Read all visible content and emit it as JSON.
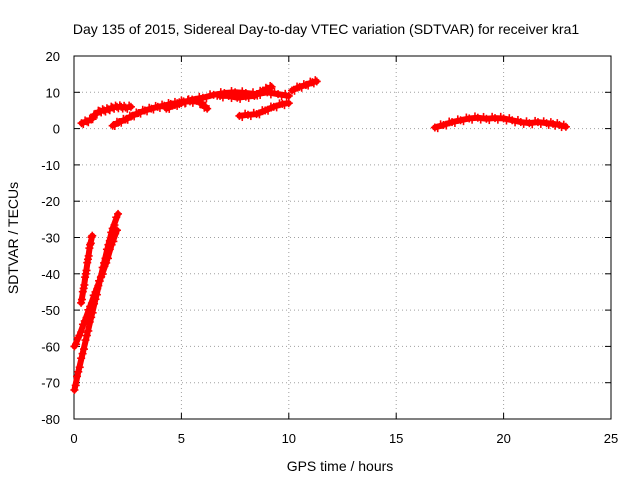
{
  "chart_data": {
    "type": "scatter",
    "title": "Day 135 of 2015, Sidereal Day-to-day VTEC variation (SDTVAR) for receiver kra1",
    "xlabel": "GPS time / hours",
    "ylabel": "SDTVAR / TECUs",
    "xlim": [
      0,
      25
    ],
    "ylim": [
      -80,
      20
    ],
    "xticks": [
      0,
      5,
      10,
      15,
      20,
      25
    ],
    "yticks": [
      -80,
      -70,
      -60,
      -50,
      -40,
      -30,
      -20,
      -10,
      0,
      10,
      20
    ],
    "grid": true,
    "marker": "plus",
    "series": [
      {
        "color": "#ff0000",
        "arcs": [
          [
            [
              0.33,
              -48
            ],
            [
              0.45,
              -44
            ],
            [
              0.55,
              -40
            ],
            [
              0.65,
              -36
            ],
            [
              0.75,
              -32
            ],
            [
              0.85,
              -29.5
            ]
          ],
          [
            [
              0.02,
              -60
            ],
            [
              0.25,
              -57
            ],
            [
              0.5,
              -53
            ],
            [
              0.75,
              -49
            ],
            [
              1.0,
              -45
            ],
            [
              1.25,
              -41
            ],
            [
              1.5,
              -37
            ],
            [
              1.75,
              -32
            ],
            [
              2.0,
              -28
            ]
          ],
          [
            [
              0.02,
              -72
            ],
            [
              0.2,
              -67
            ],
            [
              0.4,
              -62
            ],
            [
              0.6,
              -57
            ],
            [
              0.8,
              -52
            ],
            [
              1.0,
              -47
            ],
            [
              1.2,
              -42
            ],
            [
              1.4,
              -37
            ],
            [
              1.6,
              -32
            ],
            [
              1.8,
              -27.5
            ],
            [
              2.05,
              -23.5
            ]
          ],
          [
            [
              0.35,
              1.5
            ],
            [
              0.6,
              2.0
            ],
            [
              0.8,
              2.5
            ],
            [
              1.0,
              4.0
            ],
            [
              1.2,
              4.8
            ],
            [
              1.4,
              5.0
            ],
            [
              1.6,
              5.3
            ],
            [
              1.8,
              5.8
            ],
            [
              2.0,
              6.0
            ],
            [
              2.2,
              6.0
            ],
            [
              2.4,
              5.8
            ],
            [
              2.65,
              6.0
            ]
          ],
          [
            [
              1.8,
              0.8
            ],
            [
              2.1,
              1.8
            ],
            [
              2.4,
              2.5
            ],
            [
              2.7,
              3.5
            ],
            [
              3.0,
              4.3
            ],
            [
              3.3,
              5.0
            ],
            [
              3.6,
              5.5
            ],
            [
              3.9,
              6.0
            ],
            [
              4.2,
              6.3
            ],
            [
              4.5,
              6.8
            ],
            [
              4.8,
              7.0
            ],
            [
              5.1,
              7.5
            ],
            [
              5.4,
              7.5
            ],
            [
              5.8,
              7.5
            ],
            [
              6.0,
              6.5
            ],
            [
              6.2,
              5.5
            ]
          ],
          [
            [
              4.3,
              5.5
            ],
            [
              4.7,
              6.5
            ],
            [
              5.0,
              7.0
            ],
            [
              5.5,
              8.0
            ],
            [
              6.0,
              8.5
            ],
            [
              6.5,
              9.3
            ],
            [
              7.0,
              9.8
            ],
            [
              7.5,
              10.0
            ],
            [
              8.0,
              9.8
            ],
            [
              8.5,
              9.5
            ],
            [
              9.0,
              10.0
            ],
            [
              9.5,
              9.5
            ],
            [
              10.0,
              9.0
            ]
          ],
          [
            [
              6.8,
              9.0
            ],
            [
              7.2,
              9.0
            ],
            [
              7.6,
              8.5
            ],
            [
              8.0,
              8.8
            ],
            [
              8.4,
              9.0
            ],
            [
              8.8,
              10.5
            ],
            [
              9.0,
              11.0
            ],
            [
              9.2,
              11.5
            ]
          ],
          [
            [
              7.7,
              3.5
            ],
            [
              8.1,
              3.8
            ],
            [
              8.5,
              4.0
            ],
            [
              8.9,
              5.0
            ],
            [
              9.3,
              6.0
            ],
            [
              9.7,
              6.8
            ],
            [
              10.0,
              7.0
            ]
          ],
          [
            [
              10.15,
              10.5
            ],
            [
              10.5,
              11.5
            ],
            [
              10.8,
              12.0
            ],
            [
              11.1,
              12.8
            ],
            [
              11.3,
              13.0
            ]
          ],
          [
            [
              16.8,
              0.3
            ],
            [
              17.2,
              1.0
            ],
            [
              17.6,
              1.8
            ],
            [
              18.0,
              2.3
            ],
            [
              18.4,
              2.8
            ],
            [
              18.8,
              3.0
            ],
            [
              19.2,
              2.7
            ],
            [
              19.6,
              2.9
            ],
            [
              20.0,
              2.8
            ],
            [
              20.4,
              2.3
            ],
            [
              20.8,
              1.8
            ],
            [
              21.2,
              1.5
            ],
            [
              21.6,
              1.8
            ],
            [
              22.0,
              1.5
            ],
            [
              22.3,
              1.3
            ],
            [
              22.6,
              1.0
            ],
            [
              22.9,
              0.5
            ]
          ]
        ]
      }
    ]
  }
}
